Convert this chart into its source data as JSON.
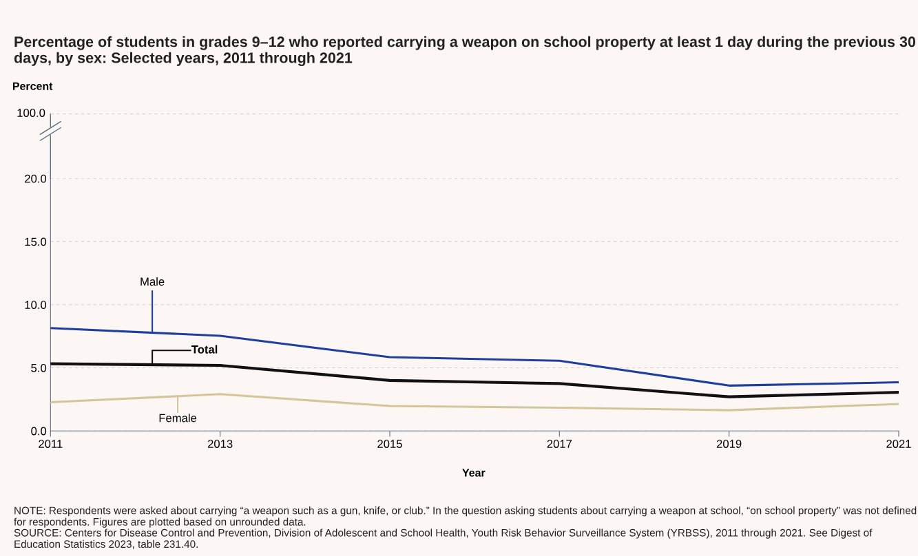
{
  "chart_data": {
    "type": "line",
    "title": "Percentage of students in grades 9–12 who reported carrying a weapon on school property at least 1 day during the previous 30 days, by sex: Selected years, 2011 through 2021",
    "xlabel": "Year",
    "x": [
      2011,
      2013,
      2015,
      2017,
      2019,
      2021
    ],
    "xlim": [
      2011,
      2021
    ],
    "xticks": [
      2011,
      2013,
      2015,
      2017,
      2019,
      2021
    ],
    "ylim": [
      0,
      20
    ],
    "yticks": [
      {
        "value": 0,
        "label": "0.0"
      },
      {
        "value": 5,
        "label": "5.0"
      },
      {
        "value": 10,
        "label": "10.0"
      },
      {
        "value": 15,
        "label": "15.0"
      },
      {
        "value": 20,
        "label": "20.0"
      }
    ],
    "grid": "y",
    "marker": "none",
    "line_style": "solid",
    "series": [
      {
        "name": "Male",
        "color": "#1f3f9e",
        "values": [
          8.15,
          7.53,
          5.84,
          5.56,
          3.59,
          3.85
        ]
      },
      {
        "name": "Total",
        "color": "#111111",
        "values": [
          5.32,
          5.19,
          4.0,
          3.75,
          2.7,
          3.06
        ]
      },
      {
        "name": "Female",
        "color": "#d2c69a",
        "values": [
          2.27,
          2.91,
          1.97,
          1.84,
          1.64,
          2.13
        ]
      }
    ],
    "annotations": [
      "100.0",
      "Percent",
      "NOTE: Respondents were asked about carrying “a weapon such as a gun, knife, or club.” In the question asking students about carrying a weapon at school, “on school property” was not defined for respondents. Figures are plotted based on unrounded data.",
      "SOURCE: Centers for Disease Control and Prevention, Division of Adolescent and School Health, Youth Risk Behavior Surveillance System (YRBSS), 2011 through 2021. See Digest of Education Statistics 2023, table 231.40."
    ]
  }
}
